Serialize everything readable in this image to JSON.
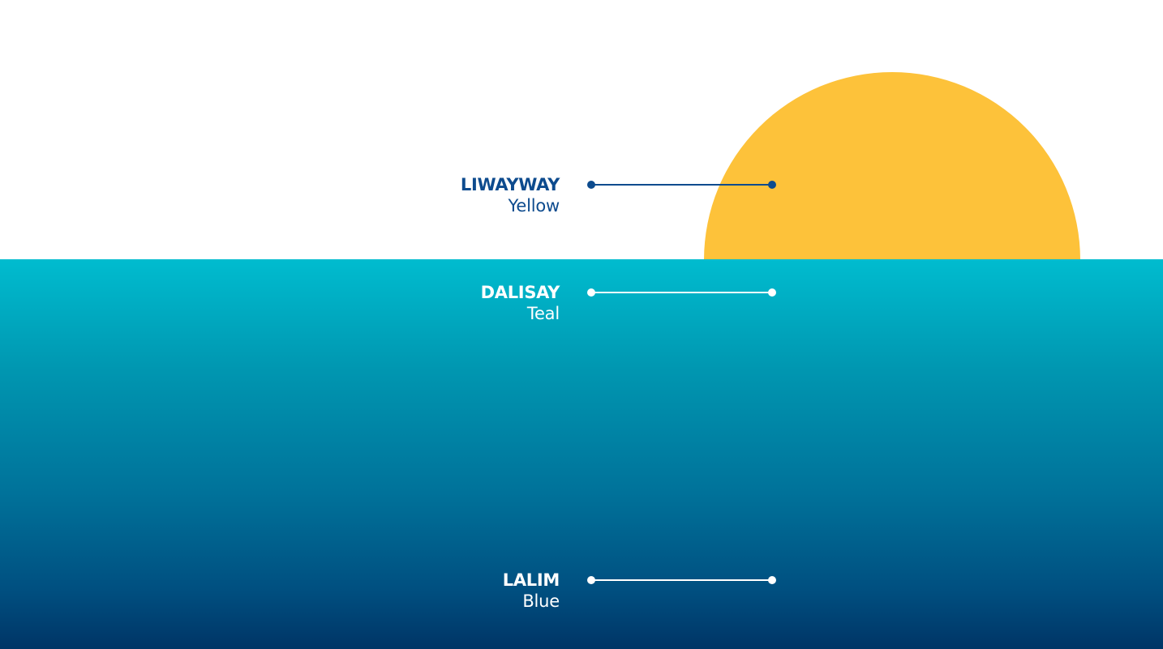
{
  "colors": {
    "sky": "#ffffff",
    "sun": "#fdc23a",
    "sea_top": "#00bccf",
    "sea_bottom": "#003566",
    "dark_label": "#0d4b8e",
    "light_label": "#ffffff"
  },
  "labels": [
    {
      "name": "LIWAYWAY",
      "color": "Yellow"
    },
    {
      "name": "DALISAY",
      "color": "Teal"
    },
    {
      "name": "LALIM",
      "color": "Blue"
    }
  ]
}
